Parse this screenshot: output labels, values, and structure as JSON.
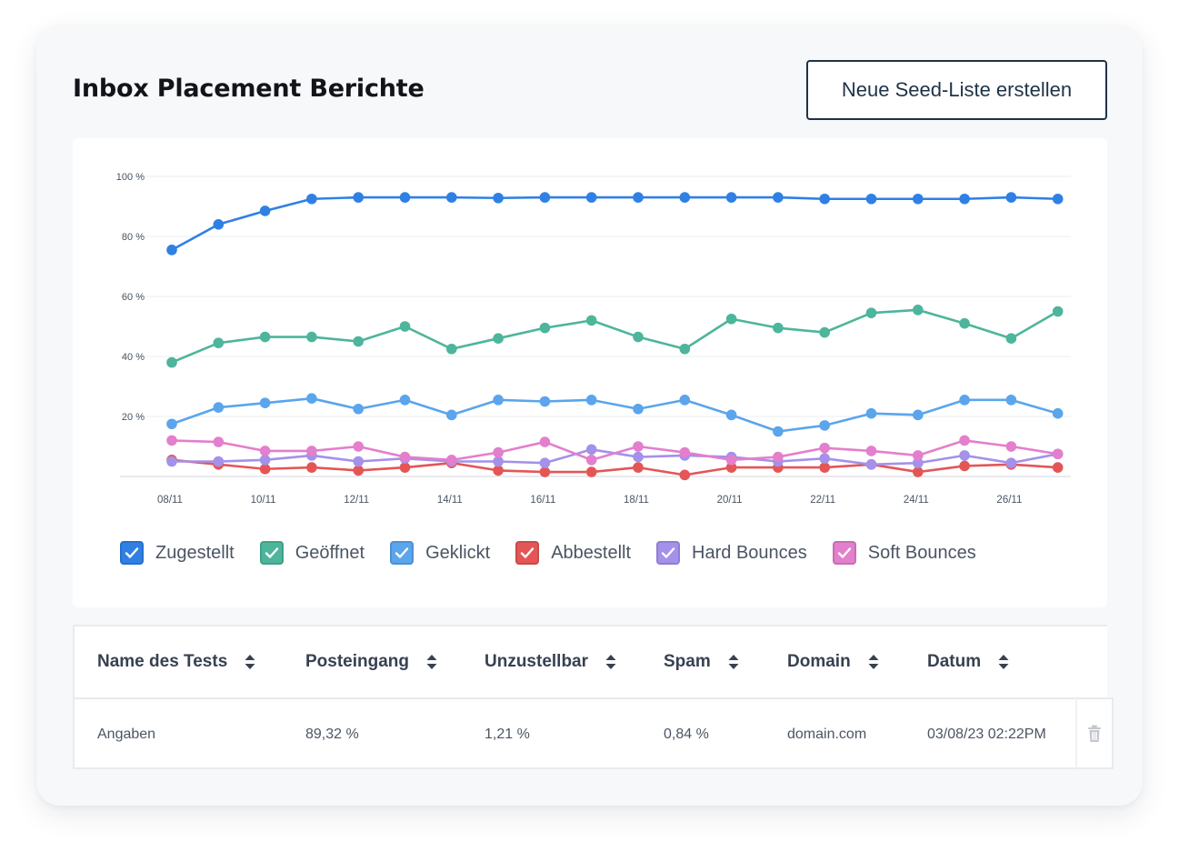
{
  "header": {
    "title": "Inbox Placement Berichte",
    "new_button_label": "Neue Seed-Liste erstellen"
  },
  "chart_data": {
    "type": "line",
    "ylim": [
      0,
      100
    ],
    "y_ticks": [
      20,
      40,
      60,
      80,
      100
    ],
    "y_tick_labels": [
      "20 %",
      "40 %",
      "60 %",
      "80 %",
      "100 %"
    ],
    "x": [
      "08/11",
      "09/11",
      "10/11",
      "11/11",
      "12/11",
      "13/11",
      "14/11",
      "15/11",
      "16/11",
      "17/11",
      "18/11",
      "19/11",
      "20/11",
      "21/11",
      "22/11",
      "23/11",
      "24/11",
      "25/11",
      "26/11",
      "27/11"
    ],
    "x_tick_labels": [
      "08/11",
      "10/11",
      "12/11",
      "14/11",
      "16/11",
      "18/11",
      "20/11",
      "22/11",
      "24/11",
      "26/11"
    ],
    "grid": true,
    "legend_position": "bottom-left",
    "series": [
      {
        "name": "Zugestellt",
        "color": "#2f80e4",
        "values": [
          75.5,
          84,
          88.5,
          92.5,
          93,
          93,
          93,
          92.8,
          93,
          93,
          93,
          93,
          93,
          93,
          92.5,
          92.5,
          92.5,
          92.5,
          93,
          92.5
        ]
      },
      {
        "name": "Geöffnet",
        "color": "#4db59b",
        "values": [
          38,
          44.5,
          46.5,
          46.5,
          45,
          50,
          42.5,
          46,
          49.5,
          52,
          46.5,
          42.5,
          52.5,
          49.5,
          48,
          54.5,
          55.5,
          51,
          46,
          55
        ]
      },
      {
        "name": "Geklickt",
        "color": "#5aa5ec",
        "values": [
          17.5,
          23,
          24.5,
          26,
          22.5,
          25.5,
          20.5,
          25.5,
          25,
          25.5,
          22.5,
          25.5,
          20.5,
          15,
          17,
          21,
          20.5,
          25.5,
          25.5,
          21
        ]
      },
      {
        "name": "Abbestellt",
        "color": "#e45656",
        "values": [
          5.5,
          4,
          2.5,
          3,
          2,
          3,
          4.5,
          2,
          1.5,
          1.5,
          3,
          0.5,
          3,
          3,
          3,
          4,
          1.5,
          3.5,
          4,
          3
        ]
      },
      {
        "name": "Hard Bounces",
        "color": "#a391ea",
        "values": [
          5,
          5,
          5.5,
          7,
          5,
          6,
          5,
          5,
          4.5,
          9,
          6.5,
          7,
          6.5,
          5,
          6,
          4,
          4.5,
          7,
          4.5,
          7.5
        ]
      },
      {
        "name": "Soft Bounces",
        "color": "#e37fcc",
        "values": [
          12,
          11.5,
          8.5,
          8.5,
          10,
          6.5,
          5.5,
          8,
          11.5,
          5.5,
          10,
          8,
          5.5,
          6.5,
          9.5,
          8.5,
          7,
          12,
          10,
          7.5
        ]
      }
    ]
  },
  "table": {
    "columns": [
      "Name des Tests",
      "Posteingang",
      "Unzustellbar",
      "Spam",
      "Domain",
      "Datum"
    ],
    "rows": [
      [
        "Angaben",
        "89,32 %",
        "1,21 %",
        "0,84 %",
        "domain.com",
        "03/08/23 02:22PM"
      ]
    ],
    "row_action_icon": "trash-icon"
  }
}
